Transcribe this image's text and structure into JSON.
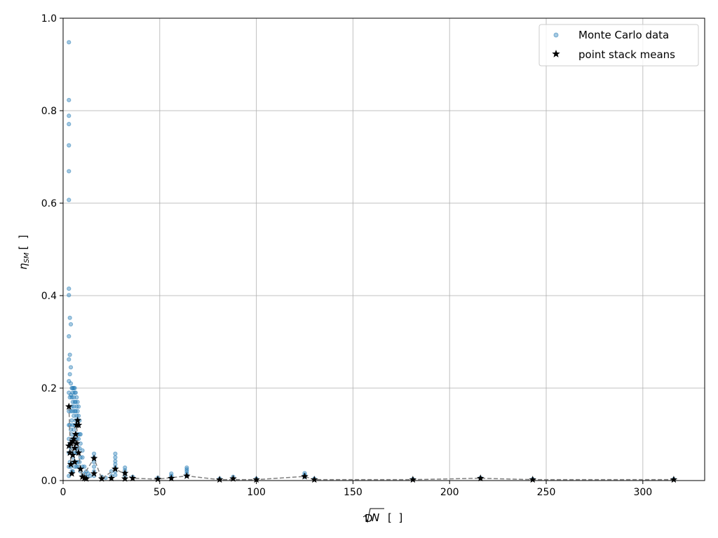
{
  "chart_data": {
    "type": "scatter",
    "xlabel": "∜N [ ]",
    "xlabel_parts": {
      "root_index": "D",
      "radicand": "N",
      "unit": "[  ]"
    },
    "ylabel": "η_SM [ ]",
    "ylabel_parts": {
      "symbol": "η",
      "subscript": "SM",
      "unit": "[  ]"
    },
    "xlim": [
      0,
      332
    ],
    "ylim": [
      0,
      1.0
    ],
    "x_ticks": [
      0,
      50,
      100,
      150,
      200,
      250,
      300
    ],
    "y_ticks": [
      0.0,
      0.2,
      0.4,
      0.6,
      0.8,
      1.0
    ],
    "x_tick_labels": [
      "0",
      "50",
      "100",
      "150",
      "200",
      "250",
      "300"
    ],
    "y_tick_labels": [
      "0.0",
      "0.2",
      "0.4",
      "0.6",
      "0.8",
      "1.0"
    ],
    "grid": true,
    "legend_position": "top-right",
    "colors": {
      "monte_carlo": "#1f77b4",
      "means": "#000000",
      "trend": "#808080",
      "grid": "#b0b0b0"
    },
    "series": [
      {
        "name": "Monte Carlo data",
        "kind": "scatter",
        "marker": "circle",
        "points": [
          [
            3,
            0.948
          ],
          [
            3,
            0.823
          ],
          [
            3,
            0.789
          ],
          [
            3,
            0.771
          ],
          [
            3,
            0.725
          ],
          [
            3,
            0.669
          ],
          [
            3,
            0.607
          ],
          [
            3,
            0.415
          ],
          [
            3,
            0.401
          ],
          [
            3,
            0.312
          ],
          [
            3,
            0.262
          ],
          [
            3,
            0.215
          ],
          [
            3,
            0.19
          ],
          [
            3,
            0.15
          ],
          [
            3,
            0.12
          ],
          [
            3,
            0.09
          ],
          [
            3,
            0.06
          ],
          [
            3,
            0.03
          ],
          [
            3,
            0.01
          ],
          [
            3.5,
            0.352
          ],
          [
            3.5,
            0.272
          ],
          [
            3.5,
            0.23
          ],
          [
            3.5,
            0.18
          ],
          [
            3.5,
            0.12
          ],
          [
            3.5,
            0.08
          ],
          [
            3.5,
            0.04
          ],
          [
            4,
            0.338
          ],
          [
            4,
            0.245
          ],
          [
            4,
            0.21
          ],
          [
            4,
            0.185
          ],
          [
            4,
            0.15
          ],
          [
            4,
            0.11
          ],
          [
            4,
            0.07
          ],
          [
            4,
            0.03
          ],
          [
            4.5,
            0.2
          ],
          [
            4.5,
            0.18
          ],
          [
            4.5,
            0.16
          ],
          [
            4.5,
            0.13
          ],
          [
            4.5,
            0.1
          ],
          [
            4.5,
            0.06
          ],
          [
            4.5,
            0.02
          ],
          [
            5,
            0.2
          ],
          [
            5,
            0.19
          ],
          [
            5,
            0.17
          ],
          [
            5,
            0.15
          ],
          [
            5,
            0.12
          ],
          [
            5,
            0.09
          ],
          [
            5,
            0.05
          ],
          [
            5,
            0.02
          ],
          [
            5.5,
            0.2
          ],
          [
            5.5,
            0.18
          ],
          [
            5.5,
            0.16
          ],
          [
            5.5,
            0.14
          ],
          [
            5.5,
            0.11
          ],
          [
            5.5,
            0.08
          ],
          [
            5.5,
            0.04
          ],
          [
            6,
            0.2
          ],
          [
            6,
            0.19
          ],
          [
            6,
            0.17
          ],
          [
            6,
            0.15
          ],
          [
            6,
            0.12
          ],
          [
            6,
            0.09
          ],
          [
            6,
            0.06
          ],
          [
            6,
            0.03
          ],
          [
            6.5,
            0.19
          ],
          [
            6.5,
            0.17
          ],
          [
            6.5,
            0.15
          ],
          [
            6.5,
            0.13
          ],
          [
            6.5,
            0.1
          ],
          [
            6.5,
            0.07
          ],
          [
            6.5,
            0.04
          ],
          [
            7,
            0.18
          ],
          [
            7,
            0.16
          ],
          [
            7,
            0.14
          ],
          [
            7,
            0.12
          ],
          [
            7,
            0.09
          ],
          [
            7,
            0.06
          ],
          [
            7,
            0.03
          ],
          [
            7.5,
            0.17
          ],
          [
            7.5,
            0.15
          ],
          [
            7.5,
            0.13
          ],
          [
            7.5,
            0.1
          ],
          [
            7.5,
            0.07
          ],
          [
            7.5,
            0.04
          ],
          [
            8,
            0.16
          ],
          [
            8,
            0.14
          ],
          [
            8,
            0.12
          ],
          [
            8,
            0.09
          ],
          [
            8,
            0.06
          ],
          [
            8,
            0.03
          ],
          [
            8.5,
            0.13
          ],
          [
            8.5,
            0.1
          ],
          [
            8.5,
            0.07
          ],
          [
            8.5,
            0.04
          ],
          [
            9,
            0.1
          ],
          [
            9,
            0.08
          ],
          [
            9,
            0.05
          ],
          [
            9,
            0.02
          ],
          [
            10,
            0.065
          ],
          [
            10,
            0.05
          ],
          [
            10,
            0.03
          ],
          [
            10,
            0.01
          ],
          [
            11,
            0.03
          ],
          [
            11,
            0.015
          ],
          [
            12,
            0.02
          ],
          [
            12,
            0.008
          ],
          [
            13,
            0.015
          ],
          [
            14,
            0.01
          ],
          [
            16,
            0.058
          ],
          [
            16,
            0.05
          ],
          [
            16,
            0.04
          ],
          [
            16,
            0.03
          ],
          [
            16,
            0.02
          ],
          [
            16,
            0.01
          ],
          [
            20,
            0.008
          ],
          [
            22,
            0.006
          ],
          [
            25,
            0.02
          ],
          [
            25,
            0.01
          ],
          [
            27,
            0.058
          ],
          [
            27,
            0.05
          ],
          [
            27,
            0.042
          ],
          [
            27,
            0.035
          ],
          [
            27,
            0.028
          ],
          [
            27,
            0.02
          ],
          [
            27,
            0.012
          ],
          [
            32,
            0.028
          ],
          [
            32,
            0.022
          ],
          [
            32,
            0.016
          ],
          [
            32,
            0.01
          ],
          [
            36,
            0.008
          ],
          [
            49,
            0.006
          ],
          [
            56,
            0.015
          ],
          [
            56,
            0.01
          ],
          [
            56,
            0.006
          ],
          [
            64,
            0.028
          ],
          [
            64,
            0.024
          ],
          [
            64,
            0.02
          ],
          [
            64,
            0.015
          ],
          [
            64,
            0.01
          ],
          [
            81,
            0.004
          ],
          [
            88,
            0.008
          ],
          [
            100,
            0.004
          ],
          [
            125,
            0.016
          ],
          [
            125,
            0.012
          ],
          [
            125,
            0.008
          ],
          [
            130,
            0.004
          ],
          [
            181,
            0.003
          ],
          [
            216,
            0.006
          ],
          [
            243,
            0.003
          ],
          [
            316,
            0.003
          ]
        ]
      },
      {
        "name": "point stack means",
        "kind": "scatter",
        "marker": "star",
        "points": [
          [
            3,
            0.16
          ],
          [
            3,
            0.075
          ],
          [
            3.5,
            0.06
          ],
          [
            4,
            0.08
          ],
          [
            4,
            0.035
          ],
          [
            4.5,
            0.015
          ],
          [
            5,
            0.085
          ],
          [
            5,
            0.055
          ],
          [
            5.5,
            0.09
          ],
          [
            6,
            0.07
          ],
          [
            6,
            0.04
          ],
          [
            6.5,
            0.1
          ],
          [
            7,
            0.12
          ],
          [
            7,
            0.08
          ],
          [
            7.5,
            0.13
          ],
          [
            8,
            0.12
          ],
          [
            8,
            0.06
          ],
          [
            9,
            0.025
          ],
          [
            10,
            0.008
          ],
          [
            11,
            0.005
          ],
          [
            12,
            0.004
          ],
          [
            16,
            0.048
          ],
          [
            16,
            0.015
          ],
          [
            20,
            0.004
          ],
          [
            25,
            0.005
          ],
          [
            27,
            0.025
          ],
          [
            32,
            0.016
          ],
          [
            32,
            0.004
          ],
          [
            36,
            0.005
          ],
          [
            49,
            0.003
          ],
          [
            56,
            0.005
          ],
          [
            64,
            0.01
          ],
          [
            81,
            0.002
          ],
          [
            88,
            0.004
          ],
          [
            100,
            0.002
          ],
          [
            125,
            0.009
          ],
          [
            130,
            0.002
          ],
          [
            181,
            0.002
          ],
          [
            216,
            0.005
          ],
          [
            243,
            0.002
          ],
          [
            316,
            0.002
          ]
        ]
      },
      {
        "kind": "line",
        "style": "dashed",
        "points": [
          [
            3,
            0.16
          ],
          [
            4,
            0.035
          ],
          [
            5,
            0.085
          ],
          [
            6,
            0.07
          ],
          [
            7,
            0.12
          ],
          [
            8,
            0.06
          ],
          [
            9,
            0.025
          ],
          [
            10,
            0.008
          ],
          [
            16,
            0.048
          ],
          [
            20,
            0.004
          ],
          [
            27,
            0.025
          ],
          [
            36,
            0.005
          ],
          [
            49,
            0.003
          ],
          [
            64,
            0.01
          ],
          [
            81,
            0.002
          ],
          [
            100,
            0.002
          ],
          [
            125,
            0.009
          ],
          [
            130,
            0.002
          ],
          [
            181,
            0.002
          ],
          [
            216,
            0.005
          ],
          [
            243,
            0.002
          ],
          [
            316,
            0.002
          ]
        ]
      }
    ]
  }
}
